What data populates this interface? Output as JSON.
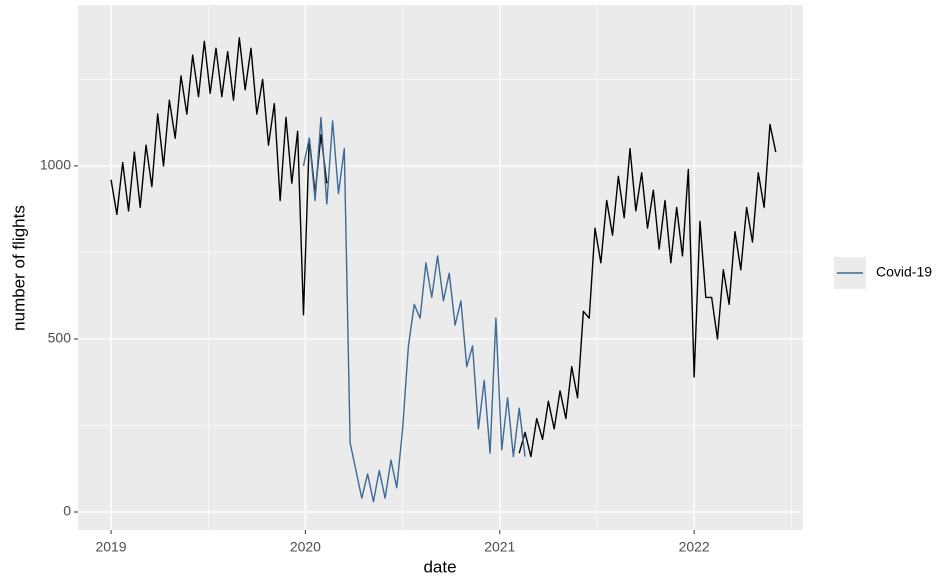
{
  "chart_data": {
    "type": "line",
    "x_label": "date",
    "y_label": "number of flights",
    "x": [
      2019.0,
      2019.03,
      2019.06,
      2019.09,
      2019.12,
      2019.15,
      2019.18,
      2019.21,
      2019.24,
      2019.27,
      2019.3,
      2019.33,
      2019.36,
      2019.39,
      2019.42,
      2019.45,
      2019.48,
      2019.51,
      2019.54,
      2019.57,
      2019.6,
      2019.63,
      2019.66,
      2019.69,
      2019.72,
      2019.75,
      2019.78,
      2019.81,
      2019.84,
      2019.87,
      2019.9,
      2019.93,
      2019.96,
      2019.99,
      2020.02,
      2020.05,
      2020.08,
      2020.11,
      2020.14,
      2020.17,
      2020.2,
      2020.23,
      2020.26,
      2020.29,
      2020.32,
      2020.35,
      2020.38,
      2020.41,
      2020.44,
      2020.47,
      2020.5,
      2020.53,
      2020.56,
      2020.59,
      2020.62,
      2020.65,
      2020.68,
      2020.71,
      2020.74,
      2020.77,
      2020.8,
      2020.83,
      2020.86,
      2020.89,
      2020.92,
      2020.95,
      2020.98,
      2021.01,
      2021.04,
      2021.07,
      2021.1,
      2021.13,
      2021.16,
      2021.19,
      2021.22,
      2021.25,
      2021.28,
      2021.31,
      2021.34,
      2021.37,
      2021.4,
      2021.43,
      2021.46,
      2021.49,
      2021.52,
      2021.55,
      2021.58,
      2021.61,
      2021.64,
      2021.67,
      2021.7,
      2021.73,
      2021.76,
      2021.79,
      2021.82,
      2021.85,
      2021.88,
      2021.91,
      2021.94,
      2021.97,
      2022.0,
      2022.03,
      2022.06,
      2022.09,
      2022.12,
      2022.15,
      2022.18,
      2022.21,
      2022.24,
      2022.27,
      2022.3,
      2022.33,
      2022.36,
      2022.39,
      2022.42
    ],
    "series": [
      {
        "color": "#000000",
        "values": [
          960,
          860,
          1010,
          870,
          1040,
          880,
          1060,
          940,
          1150,
          1000,
          1190,
          1080,
          1260,
          1150,
          1320,
          1200,
          1360,
          1210,
          1340,
          1200,
          1330,
          1190,
          1370,
          1220,
          1340,
          1150,
          1250,
          1060,
          1180,
          900,
          1140,
          950,
          1100,
          570,
          1080,
          920,
          1090,
          950,
          null,
          null,
          null,
          null,
          null,
          null,
          null,
          null,
          null,
          null,
          null,
          null,
          null,
          null,
          null,
          null,
          null,
          null,
          null,
          null,
          null,
          null,
          null,
          null,
          null,
          null,
          null,
          null,
          null,
          null,
          null,
          null,
          170,
          230,
          160,
          270,
          210,
          320,
          240,
          350,
          270,
          420,
          330,
          580,
          560,
          820,
          720,
          900,
          800,
          970,
          850,
          1050,
          870,
          980,
          820,
          930,
          760,
          900,
          720,
          880,
          740,
          990,
          390,
          840,
          620,
          620,
          500,
          700,
          600,
          810,
          700,
          880,
          780,
          980,
          880,
          1120,
          1040
        ]
      },
      {
        "name": "Covid-19",
        "color": "#3d6a96",
        "values": [
          null,
          null,
          null,
          null,
          null,
          null,
          null,
          null,
          null,
          null,
          null,
          null,
          null,
          null,
          null,
          null,
          null,
          null,
          null,
          null,
          null,
          null,
          null,
          null,
          null,
          null,
          null,
          null,
          null,
          null,
          null,
          null,
          null,
          1000,
          1080,
          900,
          1140,
          890,
          1130,
          920,
          1050,
          200,
          120,
          40,
          110,
          30,
          120,
          40,
          150,
          70,
          240,
          480,
          600,
          560,
          720,
          620,
          740,
          610,
          690,
          540,
          610,
          420,
          480,
          240,
          380,
          170,
          560,
          180,
          330,
          160,
          300,
          160,
          null,
          null,
          null,
          null,
          null,
          null,
          null,
          null,
          null,
          null,
          null,
          null,
          null,
          null,
          null,
          null,
          null,
          null,
          null,
          null,
          null,
          null,
          null,
          null,
          null,
          null,
          null,
          null,
          null,
          null,
          null,
          null,
          null,
          null,
          null,
          null,
          null,
          null,
          null,
          null,
          null,
          null,
          null
        ]
      }
    ],
    "xlim": [
      2018.83,
      2022.56
    ],
    "xticks": [
      2019,
      2020,
      2021,
      2022
    ],
    "minor_xticks": [
      2019.5,
      2020.5,
      2021.5,
      2022.5
    ],
    "ylim": [
      -52,
      1465
    ],
    "yticks": [
      0,
      500,
      1000
    ],
    "minor_yticks": [
      250,
      750,
      1250
    ],
    "grid": true,
    "legend": "right"
  }
}
